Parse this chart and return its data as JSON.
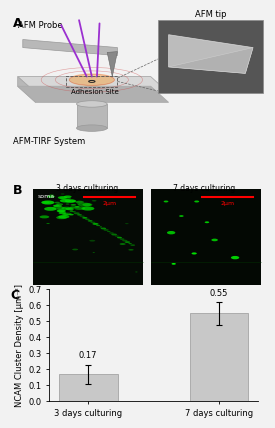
{
  "panel_labels": [
    "A",
    "B",
    "C"
  ],
  "bar_categories": [
    "3 days culturing",
    "7 days culturing"
  ],
  "bar_values": [
    0.17,
    0.55
  ],
  "bar_errors": [
    0.06,
    0.07
  ],
  "bar_color": "#c8c8c8",
  "bar_edge_color": "#999999",
  "ylabel": "NCAM Cluster Density [μm⁻²]",
  "ylim": [
    0.0,
    0.7
  ],
  "yticks": [
    0.0,
    0.1,
    0.2,
    0.3,
    0.4,
    0.5,
    0.6,
    0.7
  ],
  "value_labels": [
    "0.17",
    "0.55"
  ],
  "bg_color": "#f2f2f2",
  "panel_B_left_title": "3 days culturing",
  "panel_B_right_title": "7 days culturing",
  "font_size_labels": 6,
  "font_size_values": 6,
  "font_size_panel": 9,
  "error_cap_size": 2,
  "bar_width": 0.45,
  "table_color": "#cccccc",
  "table_edge": "#999999",
  "arm_color": "#aaaaaa",
  "purple": "#9b30d0",
  "afm_tip_bg": "#555555",
  "afm_tip_shape": "#d0d0d0"
}
